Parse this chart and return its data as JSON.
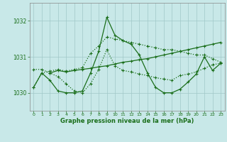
{
  "xlabel": "Graphe pression niveau de la mer (hPa)",
  "xlim": [
    -0.5,
    23.5
  ],
  "ylim": [
    1029.5,
    1032.5
  ],
  "yticks": [
    1030,
    1031,
    1032
  ],
  "xticks": [
    0,
    1,
    2,
    3,
    4,
    5,
    6,
    7,
    8,
    9,
    10,
    11,
    12,
    13,
    14,
    15,
    16,
    17,
    18,
    19,
    20,
    21,
    22,
    23
  ],
  "bg_color": "#c8e8e8",
  "grid_color": "#a0c8c8",
  "line_color": "#1a6e1a",
  "line1_x": [
    0,
    1,
    2,
    3,
    4,
    5,
    6,
    7,
    8,
    9,
    10,
    11,
    12,
    13,
    14,
    15,
    16,
    17,
    18,
    19,
    20,
    21,
    22,
    23
  ],
  "line1_y": [
    1030.15,
    1030.55,
    1030.6,
    1030.65,
    1030.6,
    1030.65,
    1030.7,
    1031.1,
    1031.3,
    1031.55,
    1031.5,
    1031.45,
    1031.4,
    1031.35,
    1031.3,
    1031.25,
    1031.2,
    1031.2,
    1031.15,
    1031.1,
    1031.05,
    1031.05,
    1030.95,
    1030.85
  ],
  "line2_x": [
    0,
    1,
    2,
    3,
    4,
    5,
    6,
    7,
    8,
    9,
    10,
    11,
    12,
    13,
    14,
    15,
    16,
    17,
    18,
    19,
    20,
    21,
    22,
    23
  ],
  "line2_y": [
    1030.65,
    1030.65,
    1030.55,
    1030.45,
    1030.25,
    1030.05,
    1030.0,
    1030.25,
    1030.65,
    1031.2,
    1030.75,
    1030.62,
    1030.58,
    1030.52,
    1030.48,
    1030.42,
    1030.38,
    1030.35,
    1030.48,
    1030.52,
    1030.58,
    1030.68,
    1030.78,
    1030.82
  ],
  "line3_x": [
    0,
    1,
    2,
    3,
    4,
    5,
    6,
    7,
    8,
    9,
    10,
    11,
    12,
    13,
    14,
    15,
    16,
    17,
    18,
    19,
    20,
    21,
    22,
    23
  ],
  "line3_y": [
    1030.15,
    1030.55,
    1030.35,
    1030.05,
    1030.0,
    1030.0,
    1030.05,
    1030.55,
    1031.15,
    1032.1,
    1031.6,
    1031.45,
    1031.35,
    1031.05,
    1030.55,
    1030.15,
    1030.0,
    1030.0,
    1030.1,
    1030.3,
    1030.52,
    1031.0,
    1030.62,
    1030.82
  ],
  "line4_x": [
    2,
    3,
    4,
    5,
    6,
    7,
    8,
    9,
    10,
    11,
    12,
    13,
    14,
    15,
    16,
    17,
    18,
    19,
    20,
    21,
    22,
    23
  ],
  "line4_y": [
    1030.55,
    1030.62,
    1030.58,
    1030.62,
    1030.65,
    1030.68,
    1030.72,
    1030.75,
    1030.8,
    1030.85,
    1030.88,
    1030.92,
    1030.95,
    1031.0,
    1031.05,
    1031.1,
    1031.15,
    1031.2,
    1031.25,
    1031.3,
    1031.35,
    1031.4
  ]
}
